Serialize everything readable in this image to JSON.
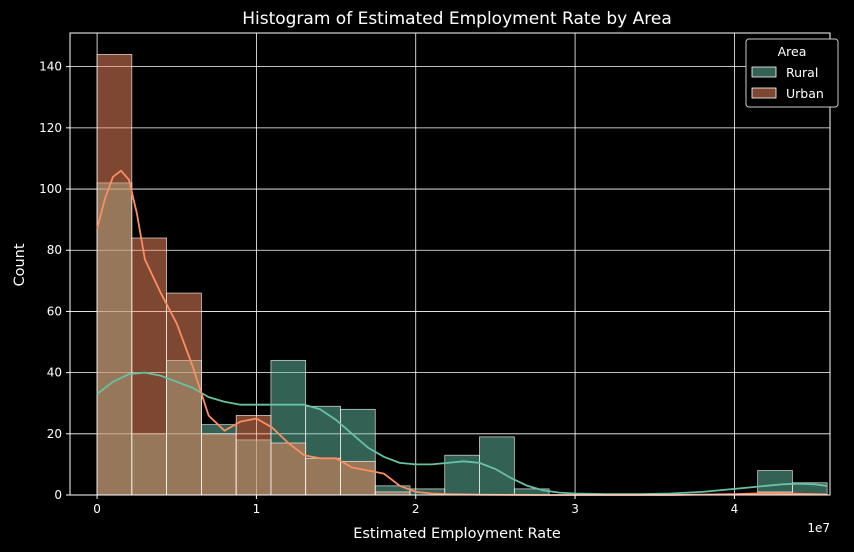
{
  "colors": {
    "background": "#000000",
    "rural": "#66c2a5",
    "urban": "#fc8d62",
    "grid": "#ffffff",
    "text": "#ffffff"
  },
  "chart_data": {
    "type": "histogram",
    "title": "Histogram of Estimated Employment Rate by Area",
    "xlabel": "Estimated Employment Rate",
    "ylabel": "Count",
    "x_scale_label": "1e7",
    "xlim": [
      -0.17,
      4.6
    ],
    "ylim": [
      0,
      151
    ],
    "x_ticks": [
      0,
      1,
      2,
      3,
      4
    ],
    "y_ticks": [
      0,
      20,
      40,
      60,
      80,
      100,
      120,
      140
    ],
    "grid": true,
    "legend": {
      "title": "Area",
      "position": "top-right",
      "entries": [
        "Rural",
        "Urban"
      ]
    },
    "bin_edges": [
      0,
      0.218,
      0.436,
      0.655,
      0.873,
      1.091,
      1.309,
      1.528,
      1.746,
      1.964,
      2.182,
      2.4,
      2.619,
      2.837,
      3.055,
      3.273,
      3.491,
      3.71,
      3.928,
      4.146,
      4.364,
      4.582
    ],
    "series": [
      {
        "name": "Rural",
        "counts": [
          102,
          20,
          44,
          23,
          18,
          44,
          29,
          28,
          3,
          2,
          13,
          19,
          2,
          0,
          0,
          0,
          0,
          0,
          0,
          8,
          4
        ],
        "kde_x": [
          0,
          0.1,
          0.2,
          0.3,
          0.4,
          0.5,
          0.6,
          0.7,
          0.8,
          0.9,
          1.0,
          1.1,
          1.2,
          1.3,
          1.4,
          1.5,
          1.6,
          1.7,
          1.8,
          1.9,
          2.0,
          2.1,
          2.2,
          2.3,
          2.4,
          2.5,
          2.6,
          2.7,
          2.8,
          2.9,
          3.0,
          3.2,
          3.4,
          3.6,
          3.8,
          4.0,
          4.1,
          4.2,
          4.3,
          4.4,
          4.5,
          4.58
        ],
        "kde_y": [
          33,
          37,
          39.5,
          40,
          39,
          37,
          35,
          32,
          30.5,
          29.5,
          29.5,
          29.5,
          29.5,
          29.5,
          28,
          24.5,
          20,
          15.5,
          12.5,
          10.5,
          10,
          10,
          10.5,
          11,
          10.5,
          8.5,
          5.5,
          3,
          1.5,
          0.8,
          0.5,
          0.3,
          0.3,
          0.5,
          1,
          2,
          2.5,
          3,
          3.5,
          3.7,
          3.5,
          3
        ]
      },
      {
        "name": "Urban",
        "counts": [
          144,
          84,
          66,
          20,
          26,
          17,
          12,
          11,
          1,
          0,
          0,
          0,
          0,
          0,
          0,
          0,
          0,
          0,
          0,
          1,
          0
        ],
        "kde_x": [
          0,
          0.05,
          0.1,
          0.15,
          0.2,
          0.25,
          0.3,
          0.4,
          0.5,
          0.6,
          0.7,
          0.8,
          0.9,
          1.0,
          1.1,
          1.2,
          1.3,
          1.4,
          1.5,
          1.6,
          1.7,
          1.8,
          1.9,
          2.0,
          2.1,
          2.2,
          2.4,
          2.8,
          3.2,
          3.6,
          4.0,
          4.2,
          4.4,
          4.58
        ],
        "kde_y": [
          87,
          97,
          104,
          106,
          103,
          92,
          77,
          66,
          56,
          42,
          26,
          21,
          24,
          25,
          22,
          17,
          13,
          12,
          12,
          9,
          8,
          7,
          3,
          1,
          0.5,
          0.3,
          0.1,
          0,
          0,
          0,
          0.3,
          0.6,
          0.4,
          0.2
        ]
      }
    ]
  }
}
